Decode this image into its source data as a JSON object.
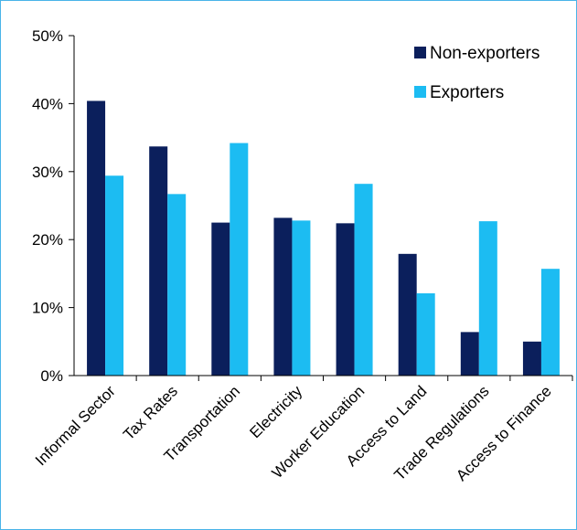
{
  "chart_data": {
    "type": "bar",
    "categories": [
      "Informal Sector",
      "Tax Rates",
      "Transportation",
      "Electricity",
      "Worker Education",
      "Access to Land",
      "Trade Regulations",
      "Access to Finance"
    ],
    "series": [
      {
        "name": "Non-exporters",
        "values": [
          40.4,
          33.7,
          22.5,
          23.2,
          22.4,
          17.9,
          6.4,
          5.0
        ],
        "color": "#0b1f5c"
      },
      {
        "name": "Exporters",
        "values": [
          29.4,
          26.7,
          34.2,
          22.8,
          28.2,
          12.1,
          22.7,
          15.7
        ],
        "color": "#1cbcf2"
      }
    ],
    "ylim": [
      0,
      50
    ],
    "yticks": [
      "0%",
      "10%",
      "20%",
      "30%",
      "40%",
      "50%"
    ],
    "grid": false,
    "legend_position": "top-right",
    "title": "",
    "xlabel": "",
    "ylabel": ""
  }
}
